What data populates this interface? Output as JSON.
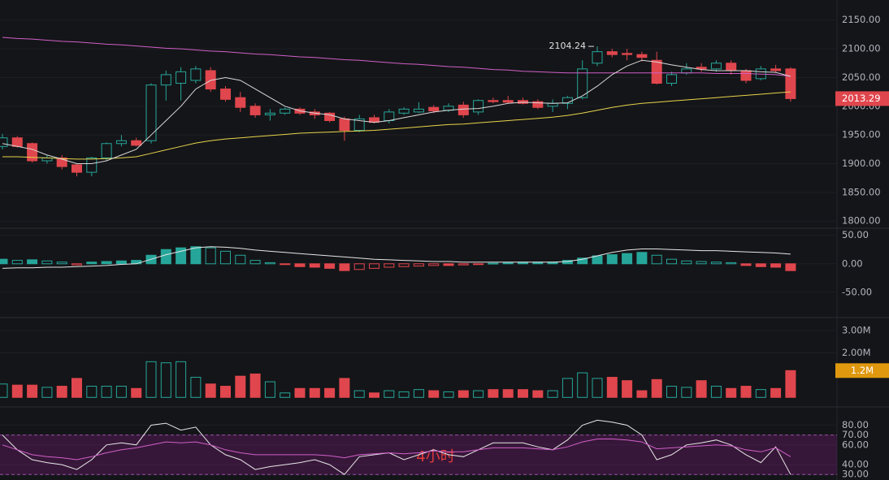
{
  "chart_data": [
    {
      "type": "candlestick",
      "up_color": "#26a69a",
      "down_color": "#e0464d",
      "open": [
        1930,
        1945,
        1935,
        1905,
        1910,
        1898,
        1885,
        1910,
        1935,
        1940,
        1940,
        2037,
        2040,
        2045,
        2062,
        2030,
        2015,
        2000,
        1985,
        1988,
        1995,
        1990,
        1988,
        1978,
        1958,
        1980,
        1975,
        1988,
        1990,
        1998,
        1993,
        2002,
        1990,
        2010,
        2010,
        2010,
        2008,
        2000,
        2005,
        2015,
        2075,
        2095,
        2092,
        2090,
        2080,
        2040,
        2058,
        2068,
        2065,
        2075,
        2062,
        2048,
        2065,
        2065
      ],
      "high": [
        1952,
        1948,
        1937,
        1915,
        1915,
        1900,
        1912,
        1937,
        1950,
        1945,
        2040,
        2062,
        2068,
        2070,
        2068,
        2035,
        2025,
        2005,
        1995,
        1998,
        1998,
        1995,
        1990,
        1982,
        1985,
        1985,
        1995,
        1998,
        2007,
        2002,
        2005,
        2008,
        2012,
        2015,
        2018,
        2015,
        2012,
        2012,
        2018,
        2080,
        2104.24,
        2100,
        2100,
        2095,
        2095,
        2060,
        2075,
        2075,
        2080,
        2080,
        2065,
        2070,
        2072,
        2068
      ],
      "low": [
        1925,
        1928,
        1902,
        1900,
        1890,
        1878,
        1878,
        1905,
        1930,
        1930,
        1935,
        2010,
        2010,
        2040,
        2025,
        2008,
        1990,
        1980,
        1975,
        1985,
        1985,
        1978,
        1972,
        1940,
        1955,
        1970,
        1970,
        1985,
        1988,
        1988,
        1990,
        1980,
        1985,
        2005,
        2005,
        2003,
        1995,
        1990,
        1995,
        2012,
        2070,
        2085,
        2080,
        2078,
        2038,
        2035,
        2055,
        2060,
        2060,
        2055,
        2040,
        2045,
        2058,
        2008
      ],
      "close": [
        1945,
        1930,
        1905,
        1910,
        1895,
        1885,
        1910,
        1935,
        1940,
        1932,
        2037,
        2055,
        2060,
        2065,
        2030,
        2012,
        1998,
        1985,
        1988,
        1995,
        1988,
        1985,
        1975,
        1958,
        1978,
        1972,
        1990,
        1995,
        1995,
        1992,
        2000,
        1985,
        2010,
        2008,
        2007,
        2005,
        1998,
        2005,
        2015,
        2065,
        2095,
        2090,
        2090,
        2085,
        2040,
        2055,
        2065,
        2065,
        2075,
        2062,
        2045,
        2065,
        2062,
        2013.29
      ],
      "series": [
        {
          "color": "#d05fc8",
          "values": [
            2120,
            2118,
            2117,
            2115,
            2113,
            2112,
            2110,
            2108,
            2107,
            2105,
            2103,
            2101,
            2100,
            2098,
            2096,
            2095,
            2093,
            2091,
            2090,
            2088,
            2086,
            2085,
            2083,
            2081,
            2080,
            2078,
            2076,
            2074,
            2073,
            2071,
            2069,
            2068,
            2066,
            2064,
            2063,
            2061,
            2060,
            2059,
            2058,
            2058,
            2058,
            2058,
            2058,
            2058,
            2058,
            2058,
            2058,
            2058,
            2057,
            2057,
            2057,
            2056,
            2055,
            2052
          ]
        },
        {
          "color": "#e8d44d",
          "values": [
            1912,
            1912,
            1911,
            1910,
            1909,
            1908,
            1908,
            1909,
            1910,
            1912,
            1918,
            1924,
            1930,
            1936,
            1940,
            1943,
            1945,
            1947,
            1949,
            1951,
            1953,
            1954,
            1955,
            1956,
            1957,
            1958,
            1960,
            1962,
            1964,
            1966,
            1968,
            1969,
            1971,
            1973,
            1975,
            1977,
            1979,
            1981,
            1984,
            1988,
            1993,
            1998,
            2002,
            2005,
            2007,
            2009,
            2011,
            2013,
            2015,
            2017,
            2019,
            2021,
            2023,
            2025
          ]
        },
        {
          "color": "#d9d9d9",
          "values": [
            1935,
            1930,
            1925,
            1915,
            1908,
            1900,
            1900,
            1905,
            1915,
            1925,
            1950,
            1975,
            2000,
            2030,
            2045,
            2050,
            2045,
            2030,
            2015,
            2000,
            1992,
            1988,
            1985,
            1978,
            1975,
            1972,
            1975,
            1980,
            1985,
            1990,
            1993,
            1995,
            1996,
            2000,
            2005,
            2007,
            2006,
            2005,
            2006,
            2018,
            2035,
            2055,
            2070,
            2080,
            2077,
            2072,
            2068,
            2064,
            2062,
            2062,
            2062,
            2060,
            2059,
            2052
          ]
        }
      ],
      "ylim": [
        1789,
        2185
      ],
      "yticks": [
        {
          "value": 1800,
          "label": "1800.00"
        },
        {
          "value": 1850,
          "label": "1850.00"
        },
        {
          "value": 1900,
          "label": "1900.00"
        },
        {
          "value": 1950,
          "label": "1950.00"
        },
        {
          "value": 2000,
          "label": "2000.00"
        },
        {
          "value": 2050,
          "label": "2050.00"
        },
        {
          "value": 2100,
          "label": "2100.00"
        },
        {
          "value": 2150,
          "label": "2150.00"
        }
      ]
    },
    {
      "type": "bar",
      "up_color": "#26a69a",
      "down_color": "#e0464d",
      "values": [
        8,
        6,
        7,
        5,
        3,
        -2,
        3,
        4,
        5,
        6,
        15,
        25,
        28,
        30,
        28,
        22,
        15,
        6,
        2,
        -1,
        -5,
        -6,
        -8,
        -12,
        -10,
        -8,
        -6,
        -5,
        -4,
        -3,
        -3,
        -2,
        -1,
        1,
        2,
        3,
        3,
        3,
        6,
        10,
        14,
        16,
        18,
        20,
        15,
        8,
        5,
        4,
        3,
        2,
        -3,
        -5,
        -6,
        -12
      ],
      "series": [
        {
          "color": "#e6e6e6",
          "values": [
            -8,
            -7,
            -7,
            -6,
            -6,
            -5,
            -4,
            -3,
            -1,
            0,
            8,
            16,
            22,
            28,
            30,
            29,
            27,
            24,
            22,
            20,
            18,
            16,
            14,
            12,
            10,
            8,
            7,
            6,
            5,
            4,
            4,
            3,
            3,
            3,
            3,
            3,
            3,
            3,
            4,
            8,
            14,
            20,
            24,
            26,
            26,
            25,
            24,
            23,
            23,
            22,
            21,
            20,
            19,
            17
          ]
        }
      ],
      "ylim": [
        -93,
        61
      ],
      "yticks": [
        {
          "value": -50,
          "label": "-50.00"
        },
        {
          "value": 0,
          "label": "0.00"
        },
        {
          "value": 50,
          "label": "50.00"
        }
      ]
    },
    {
      "type": "bar",
      "up_color": "#26a69a",
      "down_color": "#e0464d",
      "values": [
        0.6,
        0.55,
        0.55,
        0.45,
        0.5,
        0.85,
        0.5,
        0.5,
        0.5,
        0.4,
        1.6,
        1.55,
        1.6,
        0.9,
        0.6,
        0.5,
        0.95,
        1.05,
        0.7,
        0.2,
        0.4,
        0.4,
        0.4,
        0.85,
        0.3,
        0.2,
        0.3,
        0.25,
        0.35,
        0.3,
        0.25,
        0.3,
        0.3,
        0.35,
        0.35,
        0.35,
        0.3,
        0.3,
        0.85,
        1.1,
        0.85,
        0.9,
        0.75,
        0.3,
        0.8,
        0.5,
        0.45,
        0.75,
        0.5,
        0.4,
        0.5,
        0.35,
        0.4,
        1.2
      ],
      "current": {
        "value": 1.2,
        "label": "1.2M"
      },
      "ylim": [
        -0.39,
        3.54
      ],
      "yticks": [
        {
          "value": 2,
          "label": "2.00M"
        },
        {
          "value": 3,
          "label": "3.00M"
        }
      ]
    },
    {
      "type": "line",
      "watermark": "4小时",
      "band": [
        30,
        70
      ],
      "series": [
        {
          "color": "#e8e8e8",
          "values": [
            70,
            55,
            45,
            42,
            40,
            35,
            45,
            60,
            62,
            60,
            80,
            82,
            75,
            78,
            60,
            50,
            45,
            35,
            38,
            40,
            42,
            45,
            40,
            30,
            48,
            50,
            52,
            45,
            50,
            55,
            50,
            48,
            55,
            62,
            62,
            62,
            58,
            55,
            65,
            80,
            85,
            83,
            80,
            70,
            45,
            50,
            60,
            62,
            65,
            60,
            50,
            42,
            58,
            30
          ]
        },
        {
          "color": "#d05fc8",
          "values": [
            60,
            55,
            50,
            48,
            47,
            45,
            48,
            52,
            55,
            57,
            60,
            63,
            62,
            63,
            60,
            55,
            52,
            50,
            50,
            50,
            50,
            50,
            49,
            47,
            50,
            51,
            52,
            51,
            52,
            54,
            53,
            53,
            55,
            57,
            57,
            57,
            56,
            55,
            58,
            63,
            66,
            66,
            65,
            63,
            56,
            57,
            58,
            59,
            60,
            59,
            55,
            53,
            57,
            48
          ]
        }
      ],
      "ylim": [
        24.4,
        97.7
      ],
      "yticks": [
        {
          "value": 30,
          "label": "30.00"
        },
        {
          "value": 40,
          "label": "40.00"
        },
        {
          "value": 60,
          "label": "60.00"
        },
        {
          "value": 70,
          "label": "70.00"
        },
        {
          "value": 80,
          "label": "80.00"
        }
      ]
    }
  ]
}
